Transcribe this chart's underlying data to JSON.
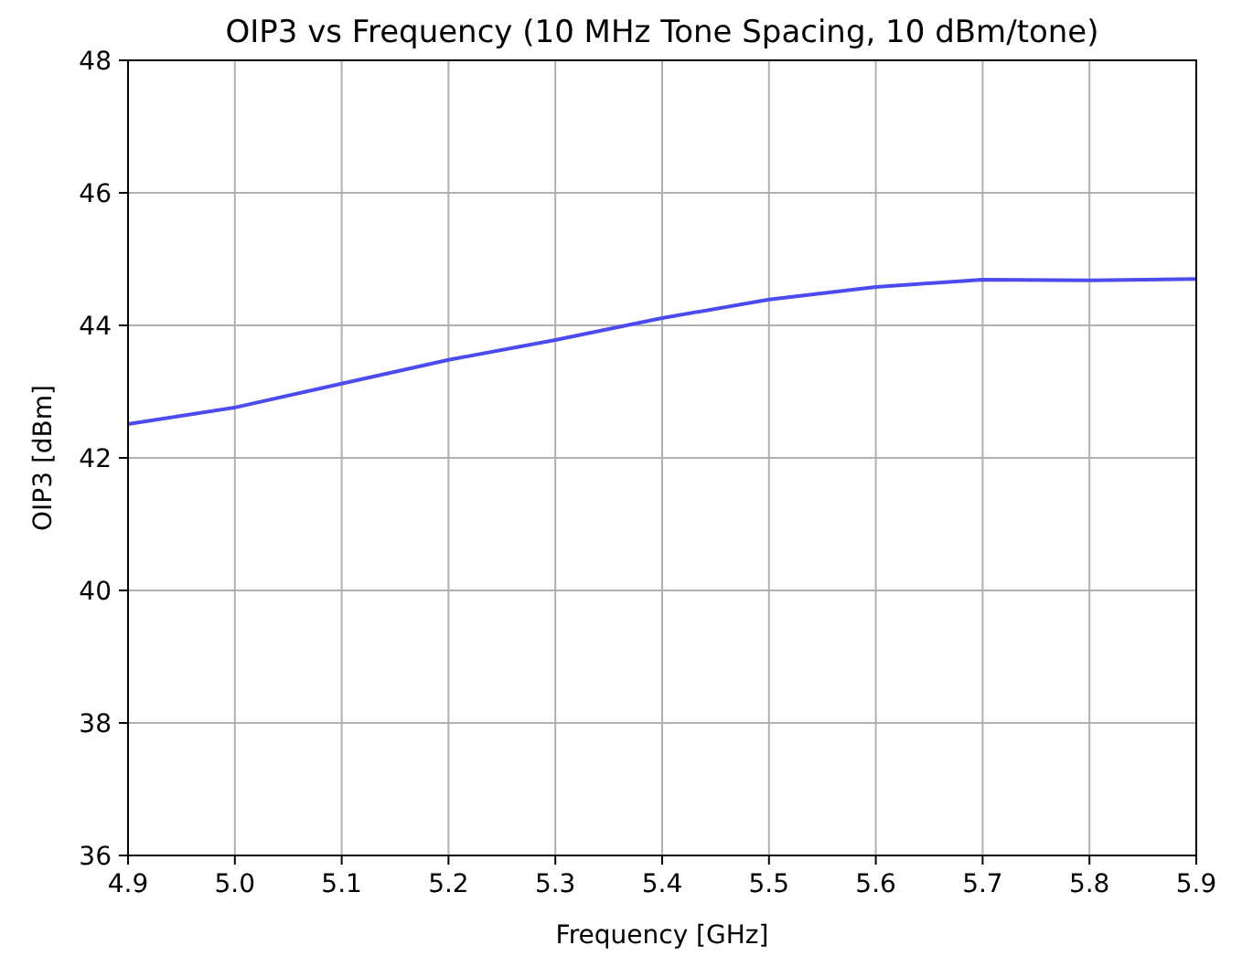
{
  "chart_data": {
    "type": "line",
    "title": "OIP3 vs Frequency (10 MHz Tone Spacing, 10 dBm/tone)",
    "xlabel": "Frequency [GHz]",
    "ylabel": "OIP3 [dBm]",
    "x": [
      4.9,
      5.0,
      5.1,
      5.2,
      5.3,
      5.4,
      5.5,
      5.6,
      5.7,
      5.8,
      5.9
    ],
    "series": [
      {
        "color": "#4b4bf0",
        "values": [
          42.51,
          42.76,
          43.12,
          43.48,
          43.78,
          44.11,
          44.39,
          44.58,
          44.69,
          44.68,
          44.7
        ]
      }
    ],
    "xlim": [
      4.9,
      5.9
    ],
    "xticks": [
      {
        "value": 4.9,
        "label": "4.9"
      },
      {
        "value": 5.0,
        "label": "5.0"
      },
      {
        "value": 5.1,
        "label": "5.1"
      },
      {
        "value": 5.2,
        "label": "5.2"
      },
      {
        "value": 5.3,
        "label": "5.3"
      },
      {
        "value": 5.4,
        "label": "5.4"
      },
      {
        "value": 5.5,
        "label": "5.5"
      },
      {
        "value": 5.6,
        "label": "5.6"
      },
      {
        "value": 5.7,
        "label": "5.7"
      },
      {
        "value": 5.8,
        "label": "5.8"
      },
      {
        "value": 5.9,
        "label": "5.9"
      }
    ],
    "ylim": [
      36,
      48
    ],
    "yticks": [
      36,
      38,
      40,
      42,
      44,
      46,
      48
    ],
    "grid": true
  }
}
